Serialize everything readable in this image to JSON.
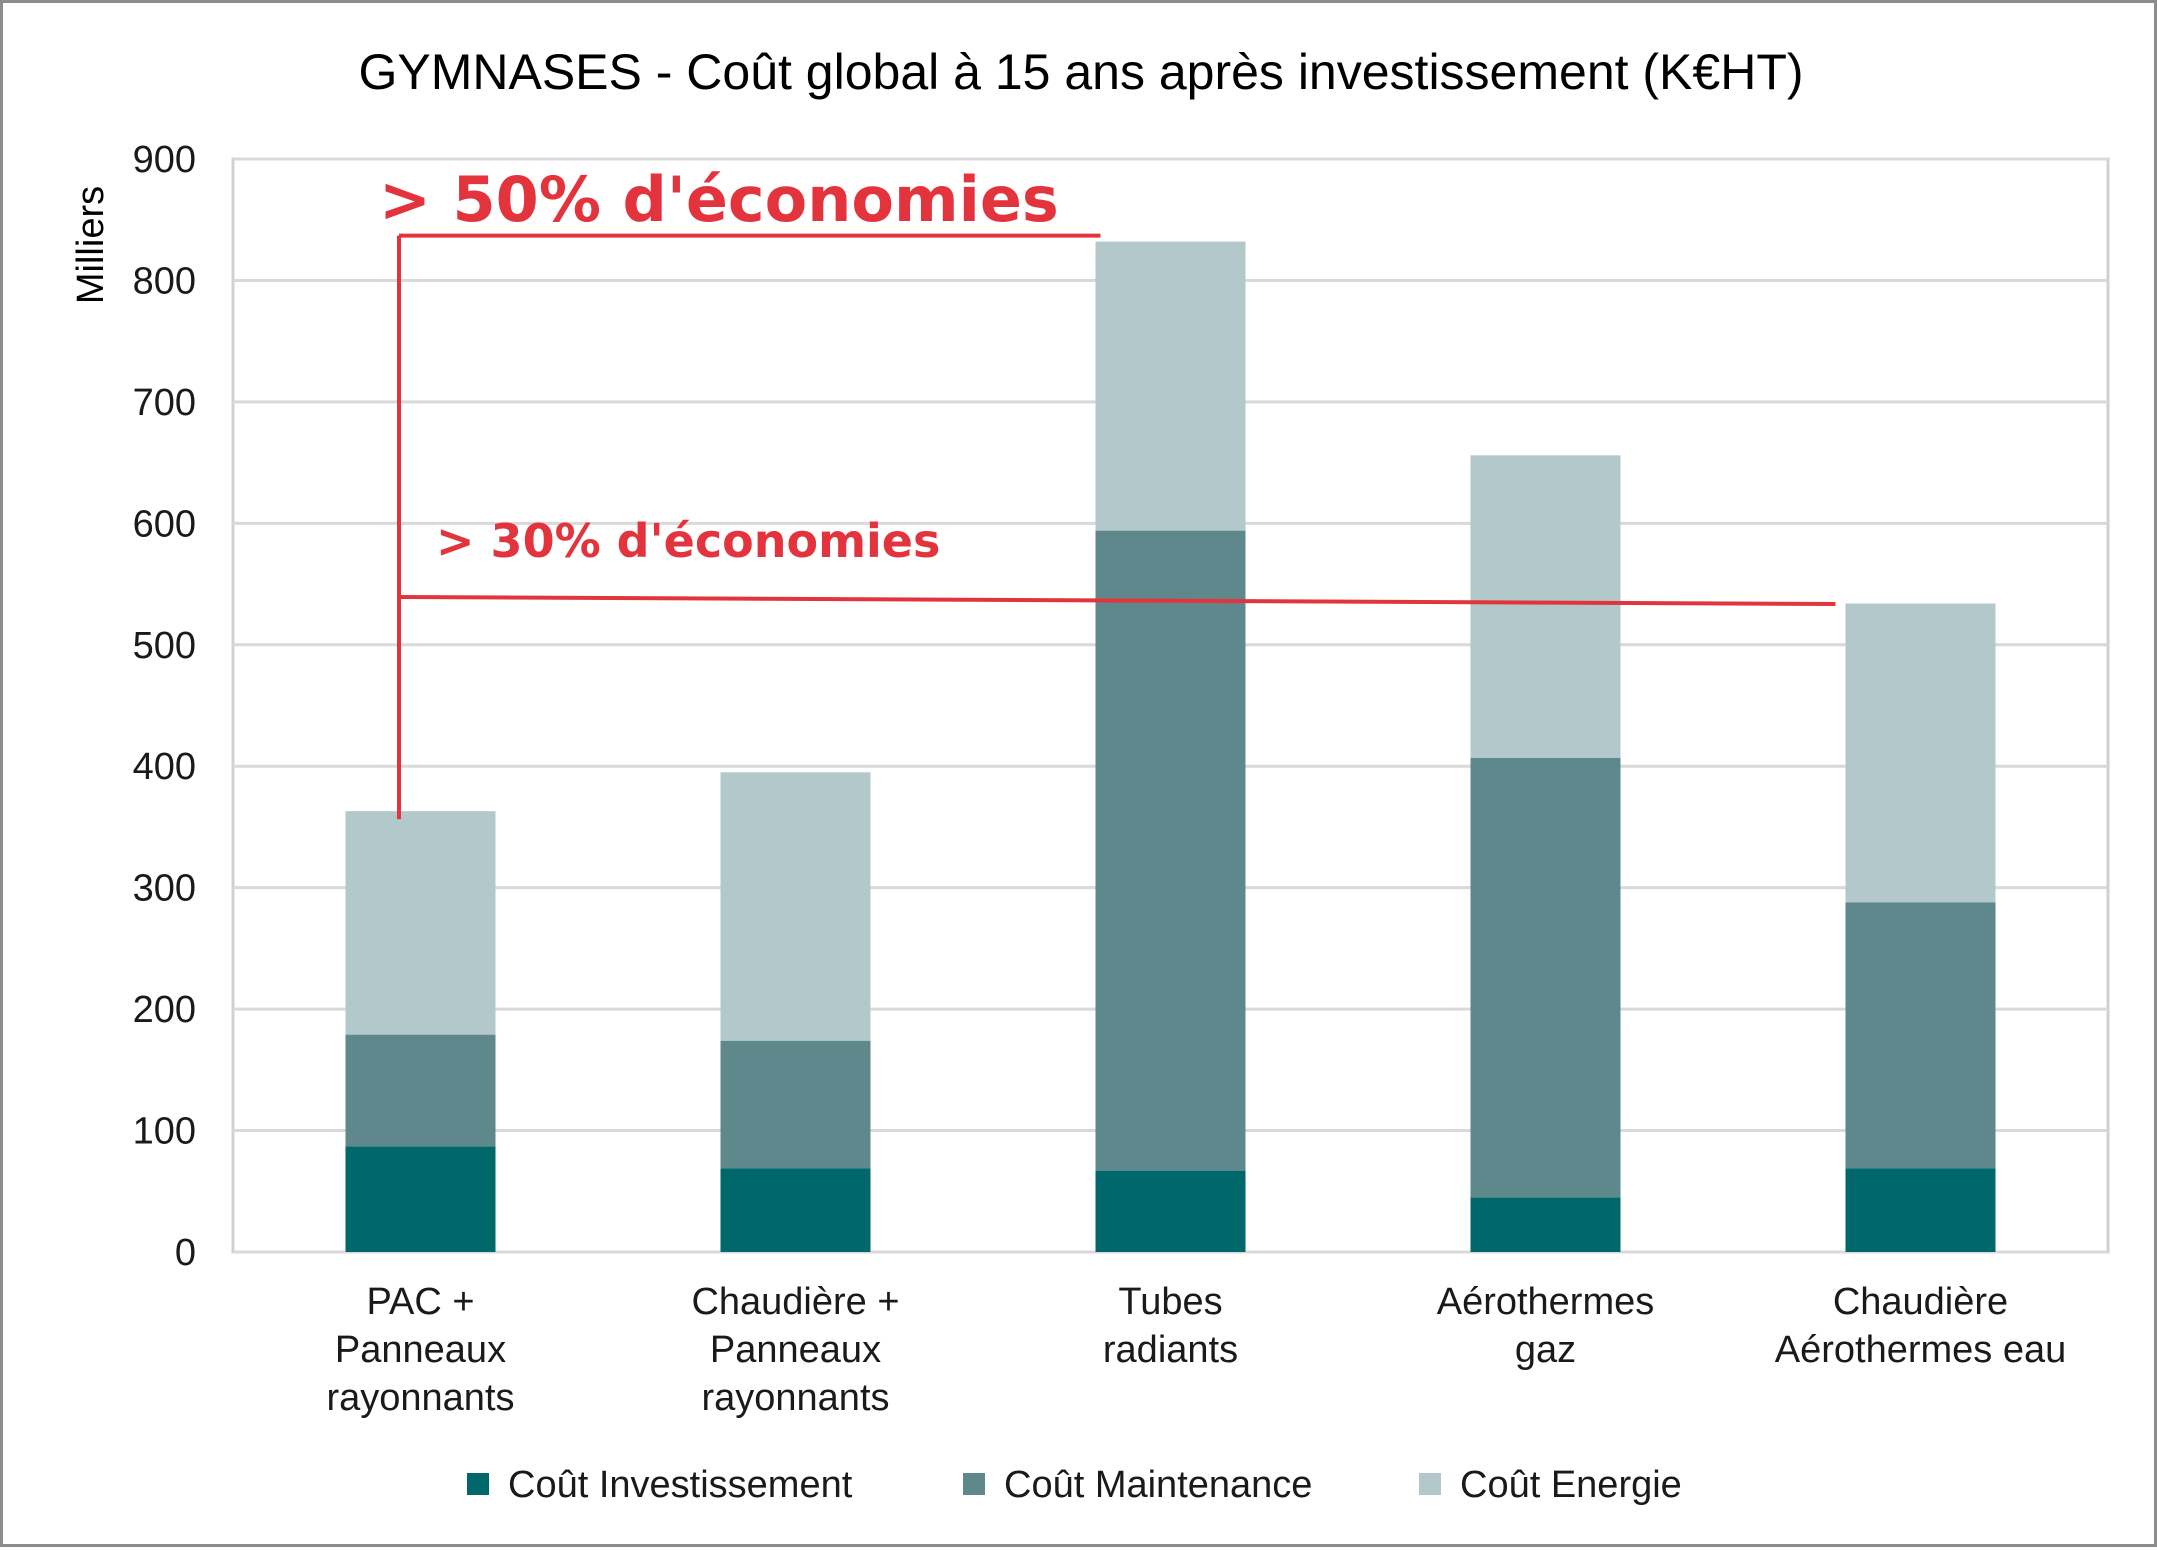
{
  "chart_data": {
    "type": "bar",
    "stacked": true,
    "title": "GYMNASES - Coût global à 15 ans après investissement (K€HT)",
    "ylabel": "Milliers",
    "xlabel": "",
    "ylim": [
      0,
      900
    ],
    "yticks": [
      0,
      100,
      200,
      300,
      400,
      500,
      600,
      700,
      800,
      900
    ],
    "grid": true,
    "legend_position": "bottom",
    "categories": [
      [
        "PAC +",
        "Panneaux",
        "rayonnants"
      ],
      [
        "Chaudière +",
        "Panneaux",
        "rayonnants"
      ],
      [
        "Tubes",
        "radiants"
      ],
      [
        "Aérothermes",
        "gaz"
      ],
      [
        "Chaudière",
        "Aérothermes eau"
      ]
    ],
    "series": [
      {
        "name": "Coût Investissement",
        "color": "#00686a",
        "values": [
          87,
          69,
          67,
          45,
          69
        ]
      },
      {
        "name": "Coût Maintenance",
        "color": "#5e888b",
        "values": [
          92,
          105,
          527,
          362,
          219
        ]
      },
      {
        "name": "Coût Energie",
        "color": "#b3c8ca",
        "values": [
          184,
          221,
          238,
          249,
          246
        ]
      }
    ],
    "annotations": [
      {
        "text": "> 50% d'économies",
        "level": 832,
        "from_category": 0,
        "to_category": 2,
        "color": "#e3343d"
      },
      {
        "text": "> 30% d'économies",
        "level": 541,
        "from_category": 0,
        "to_category": 4,
        "color": "#e3343d"
      }
    ]
  }
}
